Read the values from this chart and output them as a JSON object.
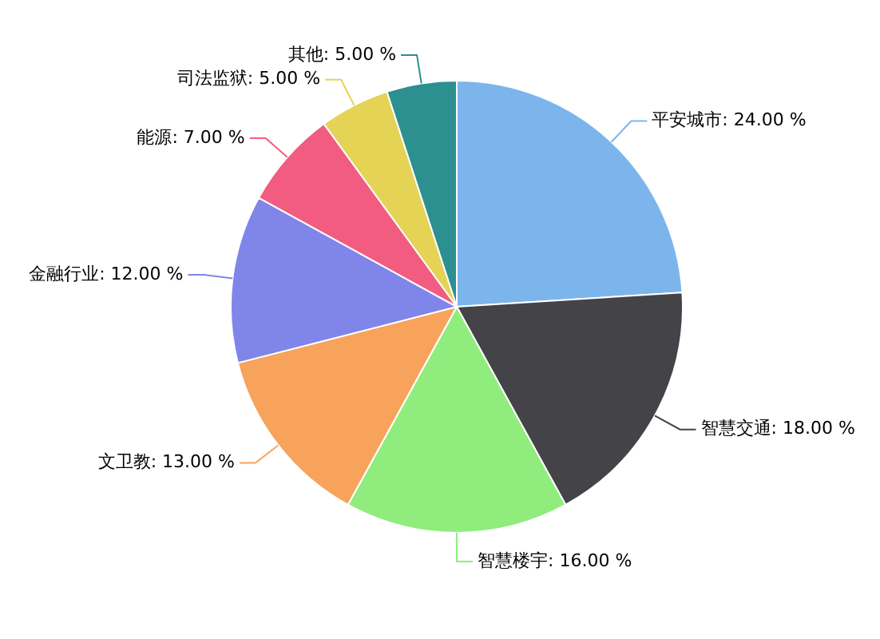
{
  "chart_data": {
    "type": "pie",
    "categories": [
      "平安城市",
      "智慧交通",
      "智慧楼宇",
      "文卫教",
      "金融行业",
      "能源",
      "司法监狱",
      "其他"
    ],
    "values": [
      24,
      18,
      16,
      13,
      12,
      7,
      5,
      5
    ],
    "colors": [
      "#7cb5ec",
      "#434348",
      "#90ed7d",
      "#f7a35c",
      "#8085e9",
      "#f15c80",
      "#e4d354",
      "#2b908f"
    ],
    "value_labels": [
      "24.00 %",
      "18.00 %",
      "16.00 %",
      "13.00 %",
      "12.00 %",
      "7.00 %",
      "5.00 %",
      "5.00 %"
    ],
    "legend": false
  }
}
